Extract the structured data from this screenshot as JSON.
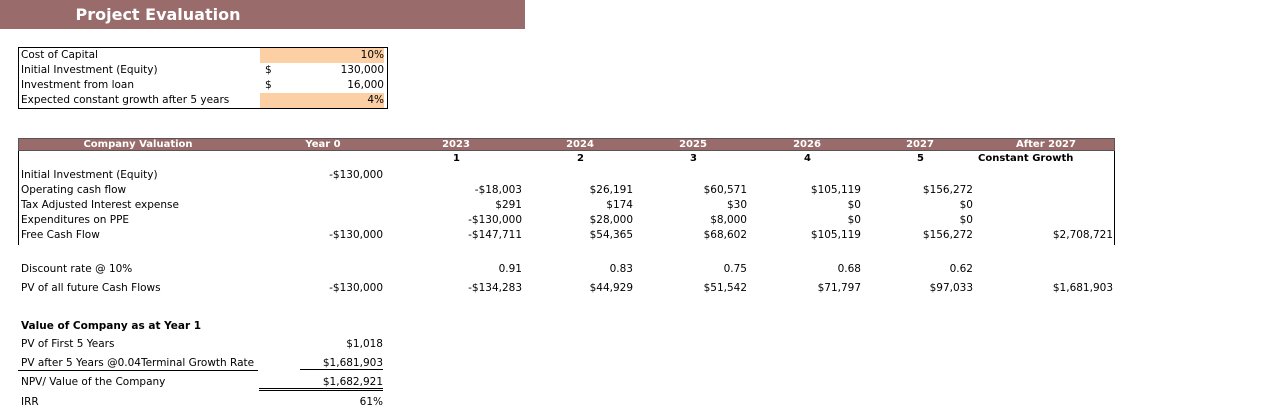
{
  "title": "Project Evaluation",
  "inputs": [
    {
      "label": "Cost of Capital",
      "currency": "",
      "value": "10%",
      "highlight": true
    },
    {
      "label": "Initial Investment (Equity)",
      "currency": "$",
      "value": "130,000",
      "highlight": false
    },
    {
      "label": "Investment from loan",
      "currency": "$",
      "value": "16,000",
      "highlight": false
    },
    {
      "label": "Expected constant growth after 5 years",
      "currency": "",
      "value": "4%",
      "highlight": true
    }
  ],
  "valuation": {
    "header": [
      "Company Valuation",
      "Year 0",
      "2023",
      "2024",
      "2025",
      "2026",
      "2027",
      "After 2027"
    ],
    "subheader": [
      "",
      "",
      "1",
      "2",
      "3",
      "4",
      "5",
      "Constant Growth"
    ],
    "rows": [
      {
        "label": "Initial Investment (Equity)",
        "values": [
          "-$130,000",
          "",
          "",
          "",
          "",
          "",
          ""
        ]
      },
      {
        "label": "Operating cash flow",
        "values": [
          "",
          "-$18,003",
          "$26,191",
          "$60,571",
          "$105,119",
          "$156,272",
          ""
        ]
      },
      {
        "label": "Tax Adjusted Interest expense",
        "values": [
          "",
          "$291",
          "$174",
          "$30",
          "$0",
          "$0",
          ""
        ]
      },
      {
        "label": "Expenditures on PPE",
        "values": [
          "",
          "-$130,000",
          "$28,000",
          "$8,000",
          "$0",
          "$0",
          ""
        ]
      },
      {
        "label": "Free Cash Flow",
        "values": [
          "-$130,000",
          "-$147,711",
          "$54,365",
          "$68,602",
          "$105,119",
          "$156,272",
          "$2,708,721"
        ]
      }
    ],
    "discount_rows": [
      {
        "label": "Discount rate @ 10%",
        "values": [
          "",
          "0.91",
          "0.83",
          "0.75",
          "0.68",
          "0.62",
          ""
        ]
      },
      {
        "label": "PV of all future Cash Flows",
        "values": [
          "-$130,000",
          "-$134,283",
          "$44,929",
          "$51,542",
          "$71,797",
          "$97,033",
          "$1,681,903"
        ]
      }
    ]
  },
  "summary": {
    "heading": "Value of Company as at Year 1",
    "items": [
      {
        "label": "PV of First 5 Years",
        "value": "$1,018"
      },
      {
        "label": "PV after 5 Years @0.04Terminal Growth Rate",
        "value": "$1,681,903"
      },
      {
        "label": "NPV/ Value of the Company",
        "value": "$1,682,921"
      },
      {
        "label": "IRR",
        "value": "61%"
      }
    ]
  },
  "colors": {
    "header_bg": "#9a6b6b",
    "input_highlight": "#fcd0a4"
  }
}
